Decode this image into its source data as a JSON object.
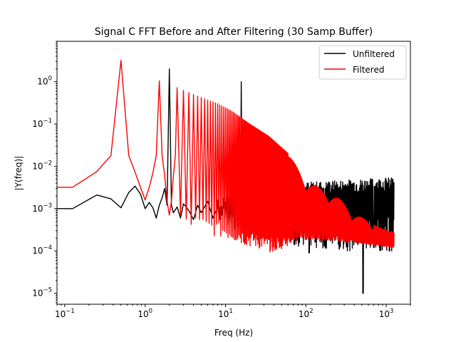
{
  "chart_data": {
    "type": "line",
    "title": "Signal C FFT Before and After Filtering (30 Samp Buffer)",
    "xlabel": "Freq (Hz)",
    "ylabel": "|Y(freq)|",
    "xscale": "log",
    "yscale": "log",
    "xlim": [
      0.08,
      2000
    ],
    "ylim": [
      5.5e-06,
      9
    ],
    "x_ticks": [
      {
        "value": 0.1,
        "base": "10",
        "exp": "−1"
      },
      {
        "value": 1,
        "base": "10",
        "exp": "0"
      },
      {
        "value": 10,
        "base": "10",
        "exp": "1"
      },
      {
        "value": 100,
        "base": "10",
        "exp": "2"
      },
      {
        "value": 1000,
        "base": "10",
        "exp": "3"
      }
    ],
    "y_ticks": [
      {
        "value": 1e-05,
        "base": "10",
        "exp": "−5"
      },
      {
        "value": 0.0001,
        "base": "10",
        "exp": "−4"
      },
      {
        "value": 0.001,
        "base": "10",
        "exp": "−3"
      },
      {
        "value": 0.01,
        "base": "10",
        "exp": "−2"
      },
      {
        "value": 0.1,
        "base": "10",
        "exp": "−1"
      },
      {
        "value": 1,
        "base": "10",
        "exp": "0"
      }
    ],
    "legend_position": "top-right",
    "series": [
      {
        "name": "Unfiltered",
        "color": "#000000",
        "x": [
          0.06,
          0.125,
          0.25,
          0.375,
          0.5,
          0.625,
          0.75,
          0.875,
          1.0,
          1.125,
          1.25,
          1.375,
          1.5,
          1.625,
          1.75,
          1.875,
          2.0,
          2.125,
          2.25,
          2.5,
          2.75,
          3.0,
          3.5,
          4.0,
          4.5,
          5.0,
          6.0,
          7.0,
          8.0,
          9.0,
          10.0,
          12.0,
          14.0,
          15.5,
          15.625,
          15.75,
          17.0,
          20.0,
          25.0,
          30.0,
          40.0,
          50.0,
          70.0,
          100.0,
          150.0,
          200.0,
          300.0,
          400.0,
          500.0,
          520.0,
          530.0,
          600.0,
          800.0,
          1000.0,
          1250.0
        ],
        "values": [
          0.001,
          0.001,
          0.0021,
          0.0017,
          0.00105,
          0.0024,
          0.0034,
          0.0022,
          0.001,
          0.0014,
          0.00105,
          0.0006,
          0.0012,
          0.0018,
          0.003,
          0.0012,
          2.0,
          0.0012,
          0.0008,
          0.0011,
          0.0006,
          0.0013,
          0.0009,
          0.00055,
          0.0012,
          0.0008,
          0.0015,
          0.0006,
          0.0011,
          0.0008,
          0.0009,
          0.0011,
          0.0008,
          0.0006,
          1.0,
          0.001,
          0.0008,
          0.0006,
          0.0009,
          0.0007,
          0.0011,
          0.0009,
          0.0012,
          0.0015,
          0.0016,
          0.0016,
          0.0018,
          0.0015,
          0.0017,
          1e-05,
          0.0017,
          0.0018,
          0.0018,
          0.0018,
          0.0018
        ],
        "envelope": {
          "x_start": 8.0,
          "x_end": 1250.0,
          "upper": [
            [
              8,
              0.0022
            ],
            [
              30,
              0.0035
            ],
            [
              100,
              0.0042
            ],
            [
              300,
              0.0048
            ],
            [
              1250,
              0.0055
            ]
          ],
          "lower": [
            [
              8,
              0.00045
            ],
            [
              30,
              0.00018
            ],
            [
              100,
              0.00012
            ],
            [
              300,
              0.0001
            ],
            [
              1250,
              0.0001
            ]
          ],
          "dips": [
            [
              18,
              0.00015
            ],
            [
              36,
              0.00013
            ],
            [
              110,
              9e-05
            ],
            [
              170,
              0.00013
            ],
            [
              260,
              0.00011
            ],
            [
              515,
              1e-05
            ],
            [
              700,
              0.00012
            ],
            [
              1100,
              0.0001
            ]
          ]
        }
      },
      {
        "name": "Filtered",
        "color": "#ff0000",
        "x": [
          0.06,
          0.125,
          0.25,
          0.375,
          0.5,
          0.625,
          0.75,
          0.875,
          1.0,
          1.125,
          1.25,
          1.375,
          1.5,
          1.625,
          1.75,
          1.875,
          2.0,
          2.125,
          2.25,
          2.375,
          2.5
        ],
        "values": [
          0.0032,
          0.0032,
          0.0075,
          0.018,
          3.2,
          0.018,
          0.0072,
          0.0032,
          0.0016,
          0.0032,
          0.007,
          0.018,
          1.05,
          0.018,
          0.006,
          0.0015,
          0.0007,
          0.0015,
          0.006,
          0.018,
          0.72
        ],
        "comb": {
          "spacing": 0.5,
          "start": 2.5,
          "end": 1250.0,
          "peaks": [
            [
              2.5,
              0.72
            ],
            [
              3.5,
              0.55
            ],
            [
              5,
              0.42
            ],
            [
              8,
              0.3
            ],
            [
              12,
              0.2
            ],
            [
              20,
              0.1
            ],
            [
              35,
              0.05
            ],
            [
              60,
              0.02
            ],
            [
              100,
              0.0045
            ],
            [
              150,
              0.003
            ],
            [
              250,
              0.0018
            ],
            [
              400,
              0.0008
            ],
            [
              700,
              0.0004
            ],
            [
              1250,
              0.00025
            ]
          ],
          "troughs": [
            [
              2.5,
              0.0006
            ],
            [
              5,
              0.00045
            ],
            [
              10,
              0.0003
            ],
            [
              20,
              0.0002
            ],
            [
              40,
              0.00015
            ],
            [
              80,
              0.0003
            ],
            [
              200,
              0.0003
            ],
            [
              500,
              0.00025
            ],
            [
              1250,
              0.0002
            ]
          ]
        }
      }
    ]
  }
}
